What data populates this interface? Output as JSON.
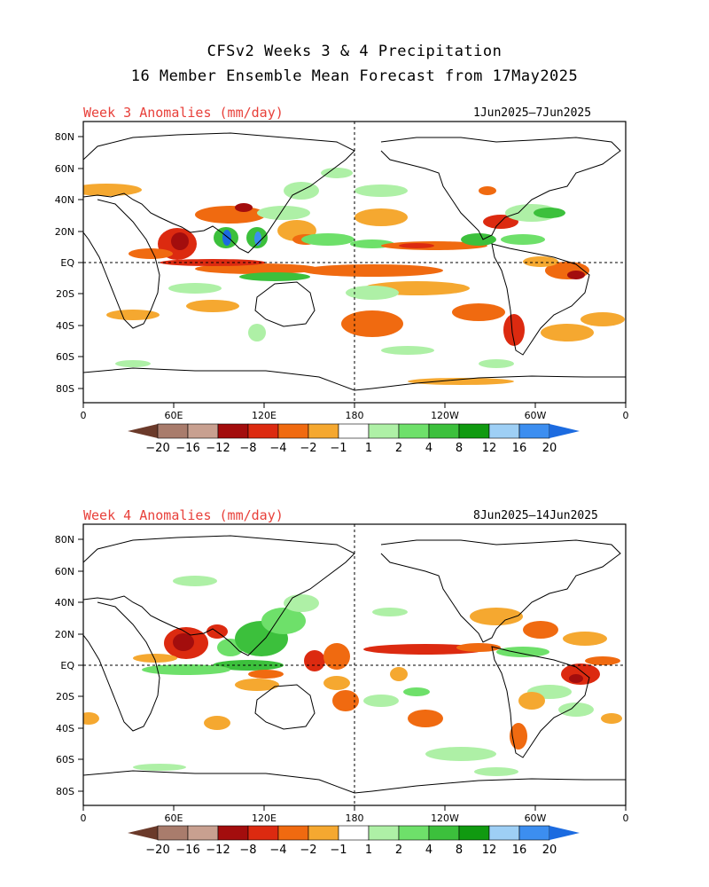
{
  "title_line1": "CFSv2 Weeks 3 & 4 Precipitation",
  "title_line2": "16 Member Ensemble Mean Forecast from 17May2025",
  "panels": [
    {
      "label": "Week 3 Anomalies (mm/day)",
      "dates": "1Jun2025–7Jun2025"
    },
    {
      "label": "Week 4 Anomalies (mm/day)",
      "dates": "8Jun2025–14Jun2025"
    }
  ],
  "lat_labels": [
    "80N",
    "60N",
    "40N",
    "20N",
    "EQ",
    "20S",
    "40S",
    "60S",
    "80S"
  ],
  "lon_labels": [
    "0",
    "60E",
    "120E",
    "180",
    "120W",
    "60W",
    "0"
  ],
  "colorbar": {
    "labels": [
      "−20",
      "−16",
      "−12",
      "−8",
      "−4",
      "−2",
      "−1",
      "1",
      "2",
      "4",
      "8",
      "12",
      "16",
      "20"
    ],
    "colors": [
      "#6b3a2a",
      "#a97c6c",
      "#c8a090",
      "#a30d0d",
      "#dc2a10",
      "#f06a10",
      "#f5a830",
      "#ffffff",
      "#aef0a6",
      "#6ee06a",
      "#3cc03c",
      "#109a10",
      "#9ecff5",
      "#3c8ef0",
      "#1c6be0"
    ]
  }
}
